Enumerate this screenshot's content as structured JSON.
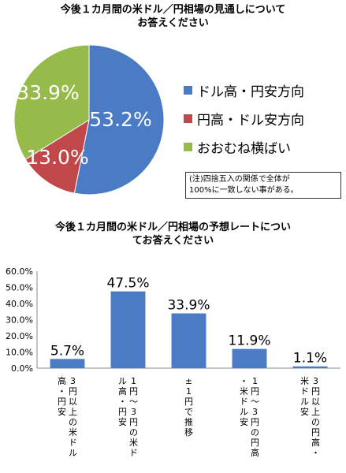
{
  "pie": {
    "title_lines": [
      "今後１カ月間の米ドル／円相場の見通しについて",
      "お答えください"
    ],
    "colors": {
      "yen_weak": "#4a7bc4",
      "yen_strong": "#c0474a",
      "flat": "#97bb4a",
      "slice_label": "#ffffff"
    },
    "legend": [
      {
        "label": "ドル高・円安方向",
        "color": "#4a7bc4"
      },
      {
        "label": "円高・ドル安方向",
        "color": "#c0474a"
      },
      {
        "label": "おおむね横ばい",
        "color": "#97bb4a"
      }
    ],
    "note_lines": [
      "(注)四捨五入の関係で全体が",
      "100%に一致しない事がある。"
    ]
  },
  "bar": {
    "title_lines": [
      "今後１カ月間の米ドル／円相場の予想レートについ",
      "てお答えください"
    ],
    "bar_color": "#4a7bc4"
  },
  "chart_data": [
    {
      "type": "pie",
      "title": "今後１カ月間の米ドル／円相場の見通しについてお答えください",
      "categories": [
        "ドル高・円安方向",
        "円高・ドル安方向",
        "おおむね横ばい"
      ],
      "values": [
        53.2,
        13.0,
        33.9
      ],
      "value_labels": [
        "53.2%",
        "13.0%",
        "33.9%"
      ],
      "legend_position": "right"
    },
    {
      "type": "bar",
      "title": "今後１カ月間の米ドル／円相場の予想レートについてお答えください",
      "categories": [
        "3円以上の米ドル高・円安",
        "1円～3円の米ドル高・円安",
        "±1円で推移",
        "1円～3円の円高・米ドル安",
        "3円以上の円高・米ドル安"
      ],
      "values": [
        5.7,
        47.5,
        33.9,
        11.9,
        1.1
      ],
      "value_labels": [
        "5.7%",
        "47.5%",
        "33.9%",
        "11.9%",
        "1.1%"
      ],
      "ylim": [
        0,
        60
      ],
      "yticks": [
        0,
        10,
        20,
        30,
        40,
        50,
        60
      ],
      "ytick_labels": [
        "0.0%",
        "10.0%",
        "20.0%",
        "30.0%",
        "40.0%",
        "50.0%",
        "60.0%"
      ],
      "grid": false,
      "xlabel": "",
      "ylabel": ""
    }
  ]
}
